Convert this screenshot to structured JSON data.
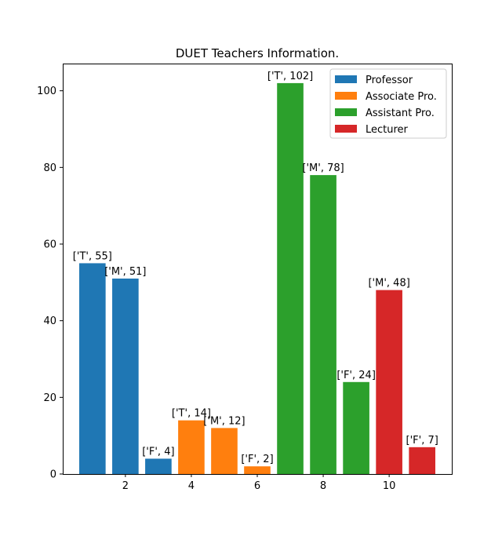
{
  "chart_data": {
    "type": "bar",
    "title": "DUET Teachers Information.",
    "xlabel": "",
    "ylabel": "",
    "xlim": [
      0.1,
      11.9
    ],
    "ylim": [
      0,
      107.1
    ],
    "xticks": [
      2,
      4,
      6,
      8,
      10
    ],
    "yticks": [
      0,
      20,
      40,
      60,
      80,
      100
    ],
    "grid": false,
    "legend_position": "top-right",
    "series": [
      {
        "name": "Professor",
        "color": "#1f77b4",
        "x": [
          1,
          2,
          3
        ],
        "values": [
          55,
          51,
          4
        ],
        "labels": [
          "['T', 55]",
          "['M', 51]",
          "['F', 4]"
        ]
      },
      {
        "name": "Associate Pro.",
        "color": "#ff7f0e",
        "x": [
          4,
          5,
          6
        ],
        "values": [
          14,
          12,
          2
        ],
        "labels": [
          "['T', 14]",
          "['M', 12]",
          "['F', 2]"
        ]
      },
      {
        "name": "Assistant Pro.",
        "color": "#2ca02c",
        "x": [
          7,
          8,
          9
        ],
        "values": [
          102,
          78,
          24
        ],
        "labels": [
          "['T', 102]",
          "['M', 78]",
          "['F', 24]"
        ]
      },
      {
        "name": "Lecturer",
        "color": "#d62728",
        "x": [
          10,
          11
        ],
        "values": [
          48,
          7
        ],
        "labels": [
          "['M', 48]",
          "['F', 7]"
        ]
      }
    ]
  }
}
